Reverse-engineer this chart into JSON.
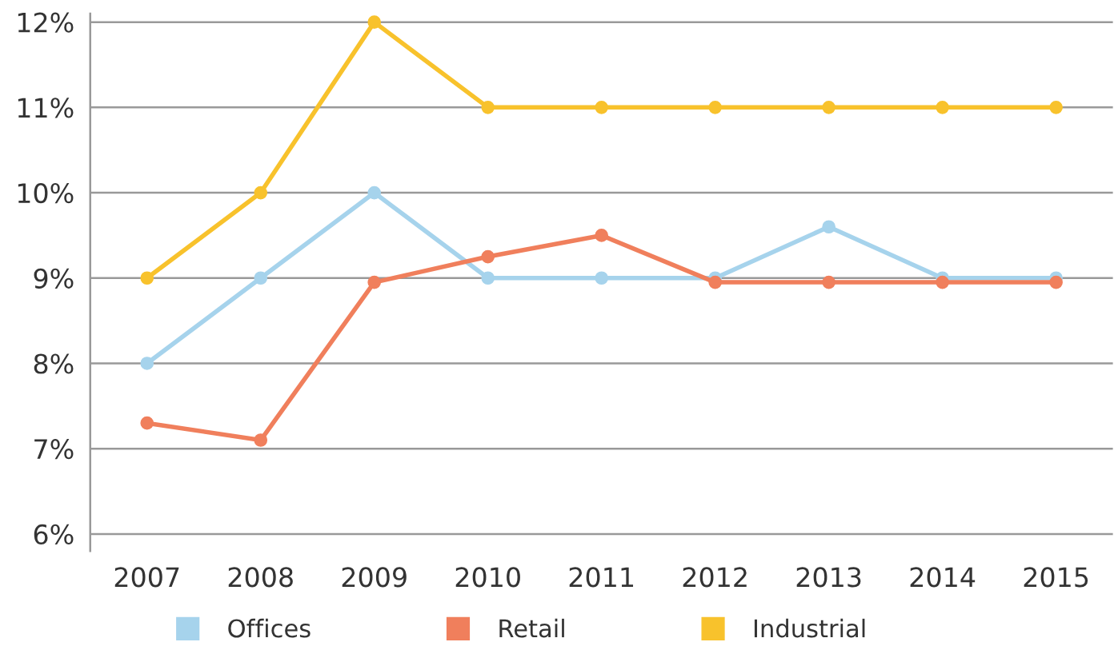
{
  "chart_data": {
    "type": "line",
    "categories": [
      "2007",
      "2008",
      "2009",
      "2010",
      "2011",
      "2012",
      "2013",
      "2014",
      "2015"
    ],
    "series": [
      {
        "name": "Offices",
        "color": "#a6d3ec",
        "values": [
          8.0,
          9.0,
          10.0,
          9.0,
          9.0,
          9.0,
          9.6,
          9.0,
          9.0
        ]
      },
      {
        "name": "Retail",
        "color": "#f07f5c",
        "values": [
          7.3,
          7.1,
          8.95,
          9.25,
          9.5,
          8.95,
          8.95,
          8.95,
          8.95
        ]
      },
      {
        "name": "Industrial",
        "color": "#f8c22c",
        "values": [
          9.0,
          10.0,
          12.0,
          11.0,
          11.0,
          11.0,
          11.0,
          11.0,
          11.0
        ]
      }
    ],
    "ylim": [
      5.8,
      12.1
    ],
    "yticks": [
      {
        "value": 6,
        "label": "6%"
      },
      {
        "value": 7,
        "label": "7%"
      },
      {
        "value": 8,
        "label": "8%"
      },
      {
        "value": 9,
        "label": "9%"
      },
      {
        "value": 10,
        "label": "10%"
      },
      {
        "value": 11,
        "label": "11%"
      },
      {
        "value": 12,
        "label": "12%"
      }
    ],
    "grid": "y",
    "legend": "bottom",
    "marker": "circle",
    "line_style": "solid"
  }
}
